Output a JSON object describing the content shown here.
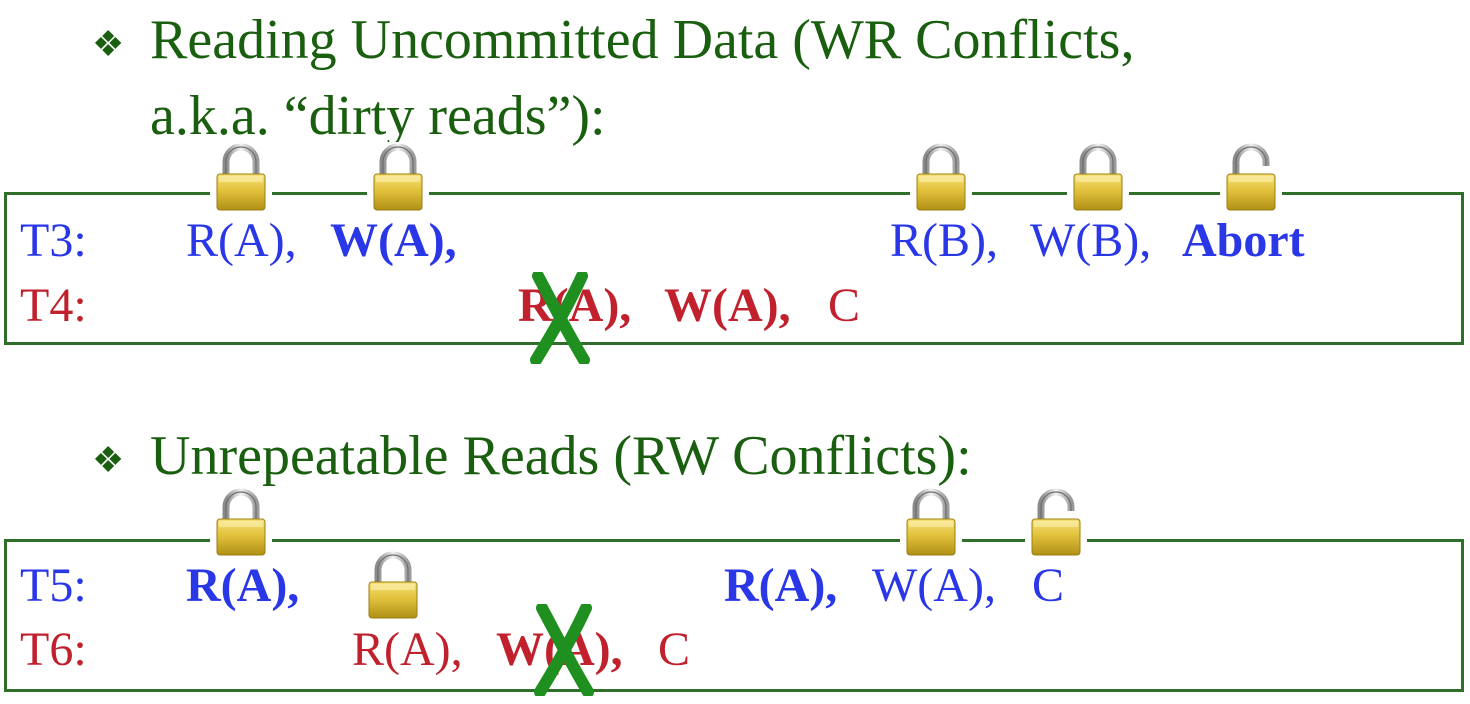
{
  "sections": [
    {
      "bullet": "❖",
      "heading_line1": "Reading Uncommitted Data (WR Conflicts,",
      "heading_line2": "a.k.a. “dirty reads”):",
      "schedule": {
        "rows": [
          {
            "label": "T3:",
            "ops": [
              "R(A),",
              "W(A),",
              "R(B),",
              "W(B),",
              "Abort"
            ]
          },
          {
            "label": "T4:",
            "ops": [
              "R(A),",
              "W(A),",
              "C"
            ]
          }
        ]
      }
    },
    {
      "bullet": "❖",
      "heading_line1": "Unrepeatable Reads (RW Conflicts):",
      "schedule": {
        "rows": [
          {
            "label": "T5:",
            "ops": [
              "R(A),",
              "R(A),",
              "W(A),",
              "C"
            ]
          },
          {
            "label": "T6:",
            "ops": [
              "R(A),",
              "W(A),",
              "C"
            ]
          }
        ]
      }
    }
  ],
  "icons": {
    "lock_closed": "padlock-closed-icon",
    "lock_open": "padlock-open-icon",
    "rejected": "green-x-mark-icon"
  },
  "colors": {
    "heading": "#1a5e0f",
    "box_border": "#2f6f2a",
    "transaction_blue": "#2a37e6",
    "transaction_red": "#c0212d",
    "cross": "#1f8f1f",
    "lock_gold": "#d4b72a"
  }
}
